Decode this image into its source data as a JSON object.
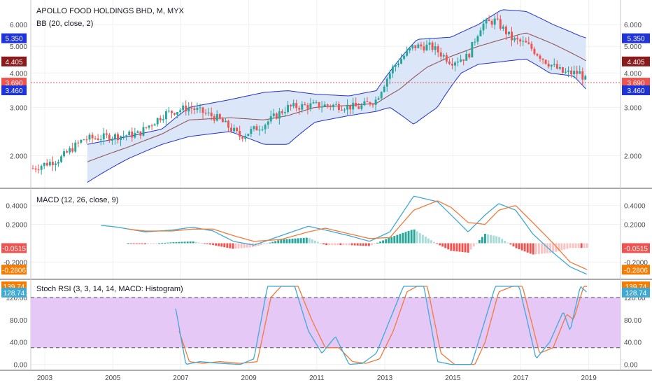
{
  "colors": {
    "up": "#26a69a",
    "down": "#ef5350",
    "bb_fill": "#dbe6f8",
    "bb_band": "#2233cc",
    "bb_basis": "#8b4a4a",
    "macd_line": "#3fa9d6",
    "signal_line": "#f07a3a",
    "hist_pos_strong": "#26a69a",
    "hist_pos_weak": "#a8dcd8",
    "hist_neg_strong": "#ef5350",
    "hist_neg_weak": "#f8c3c2",
    "stoch_k": "#3fa9d6",
    "stoch_d": "#f07a3a",
    "stoch_fill": "#e6c8f7",
    "price_line": "#ef5350",
    "dark_red_tag": "#8b1a1a",
    "blue_tag": "#1e33d9",
    "orange_tag": "#f57c00"
  },
  "panes": {
    "main": {
      "title": "APOLLO FOOD HOLDINGS BHD, M, MYX",
      "subtitle": "BB (20, close, 2)"
    },
    "macd": {
      "title": "MACD (12, 26, close, 9)"
    },
    "stoch": {
      "title": "Stoch RSI (3, 3, 14, 14, MACD: Histogram)"
    }
  },
  "tags": {
    "main": [
      {
        "text": "5.350",
        "value": 5.35,
        "color": "#1e33d9"
      },
      {
        "text": "4.405",
        "value": 4.405,
        "color": "#8b1a1a"
      },
      {
        "text": "3.690",
        "value": 3.69,
        "color": "#ef5350"
      },
      {
        "text": "3.460",
        "value": 3.46,
        "color": "#1e33d9"
      }
    ],
    "macd": [
      {
        "text": "-0.0515",
        "value": -0.0515,
        "color": "#ef5350"
      },
      {
        "text": "-0.2806",
        "value": -0.2806,
        "color": "#f57c00"
      }
    ],
    "stoch": [
      {
        "text": "139.74",
        "value": 139.74,
        "color": "#f57c00"
      },
      {
        "text": "128.74",
        "value": 128.74,
        "color": "#3fa9d6"
      }
    ]
  },
  "chart_data": [
    {
      "type": "candlestick",
      "title": "APOLLO FOOD HOLDINGS BHD, M, MYX",
      "indicator": "BB (20, close, 2)",
      "scale": "log",
      "x_ticks": [
        "2003",
        "2005",
        "2007",
        "2009",
        "2011",
        "2013",
        "2015",
        "2017",
        "2019"
      ],
      "y_ticks": [
        "2.000",
        "3.000",
        "4.000",
        "5.000",
        "6.000"
      ],
      "y_tick_values": [
        2,
        3,
        4,
        5,
        6
      ],
      "last_close": 3.69,
      "close_anchors": {
        "x": [
          2002.7,
          2003.5,
          2004.2,
          2005.0,
          2005.8,
          2006.6,
          2007.3,
          2008.1,
          2008.8,
          2009.5,
          2010.2,
          2010.9,
          2011.6,
          2012.3,
          2012.8,
          2013.3,
          2013.9,
          2014.4,
          2015.0,
          2015.5,
          2015.9,
          2016.3,
          2016.8,
          2017.2,
          2017.8,
          2018.3,
          2018.8,
          2019.0
        ],
        "y": [
          1.8,
          1.95,
          2.3,
          2.35,
          2.4,
          2.85,
          3.0,
          2.75,
          2.35,
          2.6,
          3.0,
          3.05,
          3.05,
          3.0,
          3.2,
          4.2,
          5.0,
          5.0,
          4.4,
          4.6,
          6.0,
          6.2,
          5.3,
          5.1,
          4.4,
          4.0,
          4.0,
          3.69
        ]
      },
      "bb_upper": {
        "x": [
          2004.3,
          2005.5,
          2006.5,
          2007.3,
          2008.5,
          2009.5,
          2010.2,
          2011.0,
          2012.0,
          2012.8,
          2013.3,
          2014.0,
          2015.0,
          2015.8,
          2016.5,
          2017.2,
          2018.0,
          2018.8,
          2019.0
        ],
        "y": [
          2.2,
          2.35,
          2.5,
          3.0,
          3.2,
          3.4,
          3.45,
          3.35,
          3.3,
          3.45,
          4.2,
          5.3,
          5.4,
          6.0,
          6.8,
          6.7,
          6.0,
          5.45,
          5.35
        ]
      },
      "bb_basis": {
        "x": [
          2004.3,
          2005.5,
          2006.5,
          2007.3,
          2008.5,
          2009.5,
          2010.2,
          2011.0,
          2012.0,
          2012.8,
          2013.5,
          2014.3,
          2015.0,
          2015.8,
          2016.5,
          2017.2,
          2018.0,
          2018.8,
          2019.0
        ],
        "y": [
          1.9,
          2.15,
          2.4,
          2.7,
          2.75,
          2.7,
          2.8,
          3.0,
          3.05,
          3.1,
          3.5,
          4.2,
          4.6,
          5.0,
          5.3,
          5.6,
          5.1,
          4.55,
          4.405
        ]
      },
      "bb_lower": {
        "x": [
          2004.3,
          2005.5,
          2006.5,
          2007.3,
          2008.5,
          2009.5,
          2010.2,
          2011.0,
          2012.0,
          2012.8,
          2013.2,
          2013.9,
          2014.6,
          2015.3,
          2015.8,
          2016.5,
          2017.2,
          2017.9,
          2018.6,
          2019.0
        ],
        "y": [
          1.6,
          1.95,
          2.2,
          2.35,
          2.45,
          2.2,
          2.2,
          2.65,
          2.8,
          2.9,
          3.0,
          2.6,
          3.0,
          4.0,
          4.3,
          4.4,
          4.5,
          4.0,
          3.9,
          3.46
        ]
      }
    },
    {
      "type": "line",
      "title": "MACD (12, 26, close, 9)",
      "y_ticks": [
        "-0.2000",
        "0.2000",
        "0.4000"
      ],
      "y_tick_values": [
        -0.2,
        0.2,
        0.4
      ],
      "series": [
        {
          "name": "MACD",
          "x": [
            2004.7,
            2005.2,
            2006.0,
            2006.8,
            2007.4,
            2008.0,
            2008.6,
            2009.2,
            2010.0,
            2010.8,
            2011.3,
            2012.0,
            2012.6,
            2013.2,
            2013.9,
            2014.6,
            2015.0,
            2015.5,
            2016.0,
            2016.4,
            2016.9,
            2017.4,
            2018.0,
            2018.5,
            2019.0
          ],
          "y": [
            0.19,
            0.17,
            0.12,
            0.14,
            0.17,
            0.13,
            0.02,
            -0.02,
            0.08,
            0.18,
            0.14,
            0.08,
            0.02,
            0.12,
            0.5,
            0.44,
            0.3,
            0.12,
            0.3,
            0.42,
            0.35,
            0.1,
            -0.1,
            -0.25,
            -0.33
          ]
        },
        {
          "name": "Signal",
          "x": [
            2005.5,
            2006.0,
            2006.8,
            2007.4,
            2008.0,
            2008.6,
            2009.2,
            2010.0,
            2010.8,
            2011.3,
            2012.0,
            2012.6,
            2013.2,
            2013.9,
            2014.6,
            2015.0,
            2015.5,
            2016.0,
            2016.4,
            2016.9,
            2017.4,
            2018.0,
            2018.5,
            2019.0
          ],
          "y": [
            0.15,
            0.13,
            0.13,
            0.15,
            0.15,
            0.08,
            0.02,
            0.04,
            0.12,
            0.16,
            0.1,
            0.05,
            0.06,
            0.35,
            0.45,
            0.38,
            0.22,
            0.2,
            0.35,
            0.4,
            0.22,
            0.0,
            -0.2,
            -0.28
          ]
        }
      ],
      "histogram_note": "MACD minus Signal"
    },
    {
      "type": "line",
      "title": "Stoch RSI (3, 3, 14, 14, MACD: Histogram)",
      "y_ticks": [
        "0.00",
        "40.00",
        "80.00",
        "120.00"
      ],
      "y_tick_values": [
        0,
        40,
        80,
        120
      ],
      "bands": [
        30,
        120
      ],
      "series": [
        {
          "name": "K",
          "x": [
            2006.9,
            2007.2,
            2007.6,
            2008.2,
            2008.8,
            2009.2,
            2009.6,
            2009.9,
            2010.4,
            2010.8,
            2011.2,
            2011.6,
            2012.0,
            2012.4,
            2012.8,
            2013.2,
            2013.6,
            2013.9,
            2014.2,
            2014.6,
            2015.0,
            2015.3,
            2015.6,
            2015.9,
            2016.3,
            2016.7,
            2017.0,
            2017.5,
            2017.9,
            2018.3,
            2018.5,
            2018.8,
            2019.0
          ],
          "y": [
            100,
            0,
            5,
            2,
            0,
            10,
            140,
            140,
            140,
            60,
            20,
            50,
            0,
            2,
            20,
            80,
            140,
            140,
            140,
            5,
            0,
            0,
            0,
            60,
            140,
            140,
            140,
            10,
            40,
            95,
            60,
            140,
            128.74
          ]
        },
        {
          "name": "D",
          "x": [
            2007.0,
            2007.3,
            2007.7,
            2008.2,
            2008.8,
            2009.3,
            2009.7,
            2010.0,
            2010.5,
            2010.9,
            2011.3,
            2011.7,
            2012.1,
            2012.5,
            2012.9,
            2013.3,
            2013.7,
            2014.0,
            2014.3,
            2014.7,
            2015.1,
            2015.4,
            2015.7,
            2016.0,
            2016.4,
            2016.8,
            2017.1,
            2017.6,
            2018.0,
            2018.4,
            2018.6,
            2018.9,
            2019.0
          ],
          "y": [
            60,
            5,
            2,
            5,
            2,
            5,
            120,
            140,
            140,
            80,
            30,
            30,
            5,
            2,
            10,
            60,
            130,
            140,
            140,
            20,
            0,
            0,
            0,
            40,
            130,
            140,
            140,
            20,
            30,
            90,
            80,
            140,
            139.74
          ]
        }
      ]
    }
  ]
}
